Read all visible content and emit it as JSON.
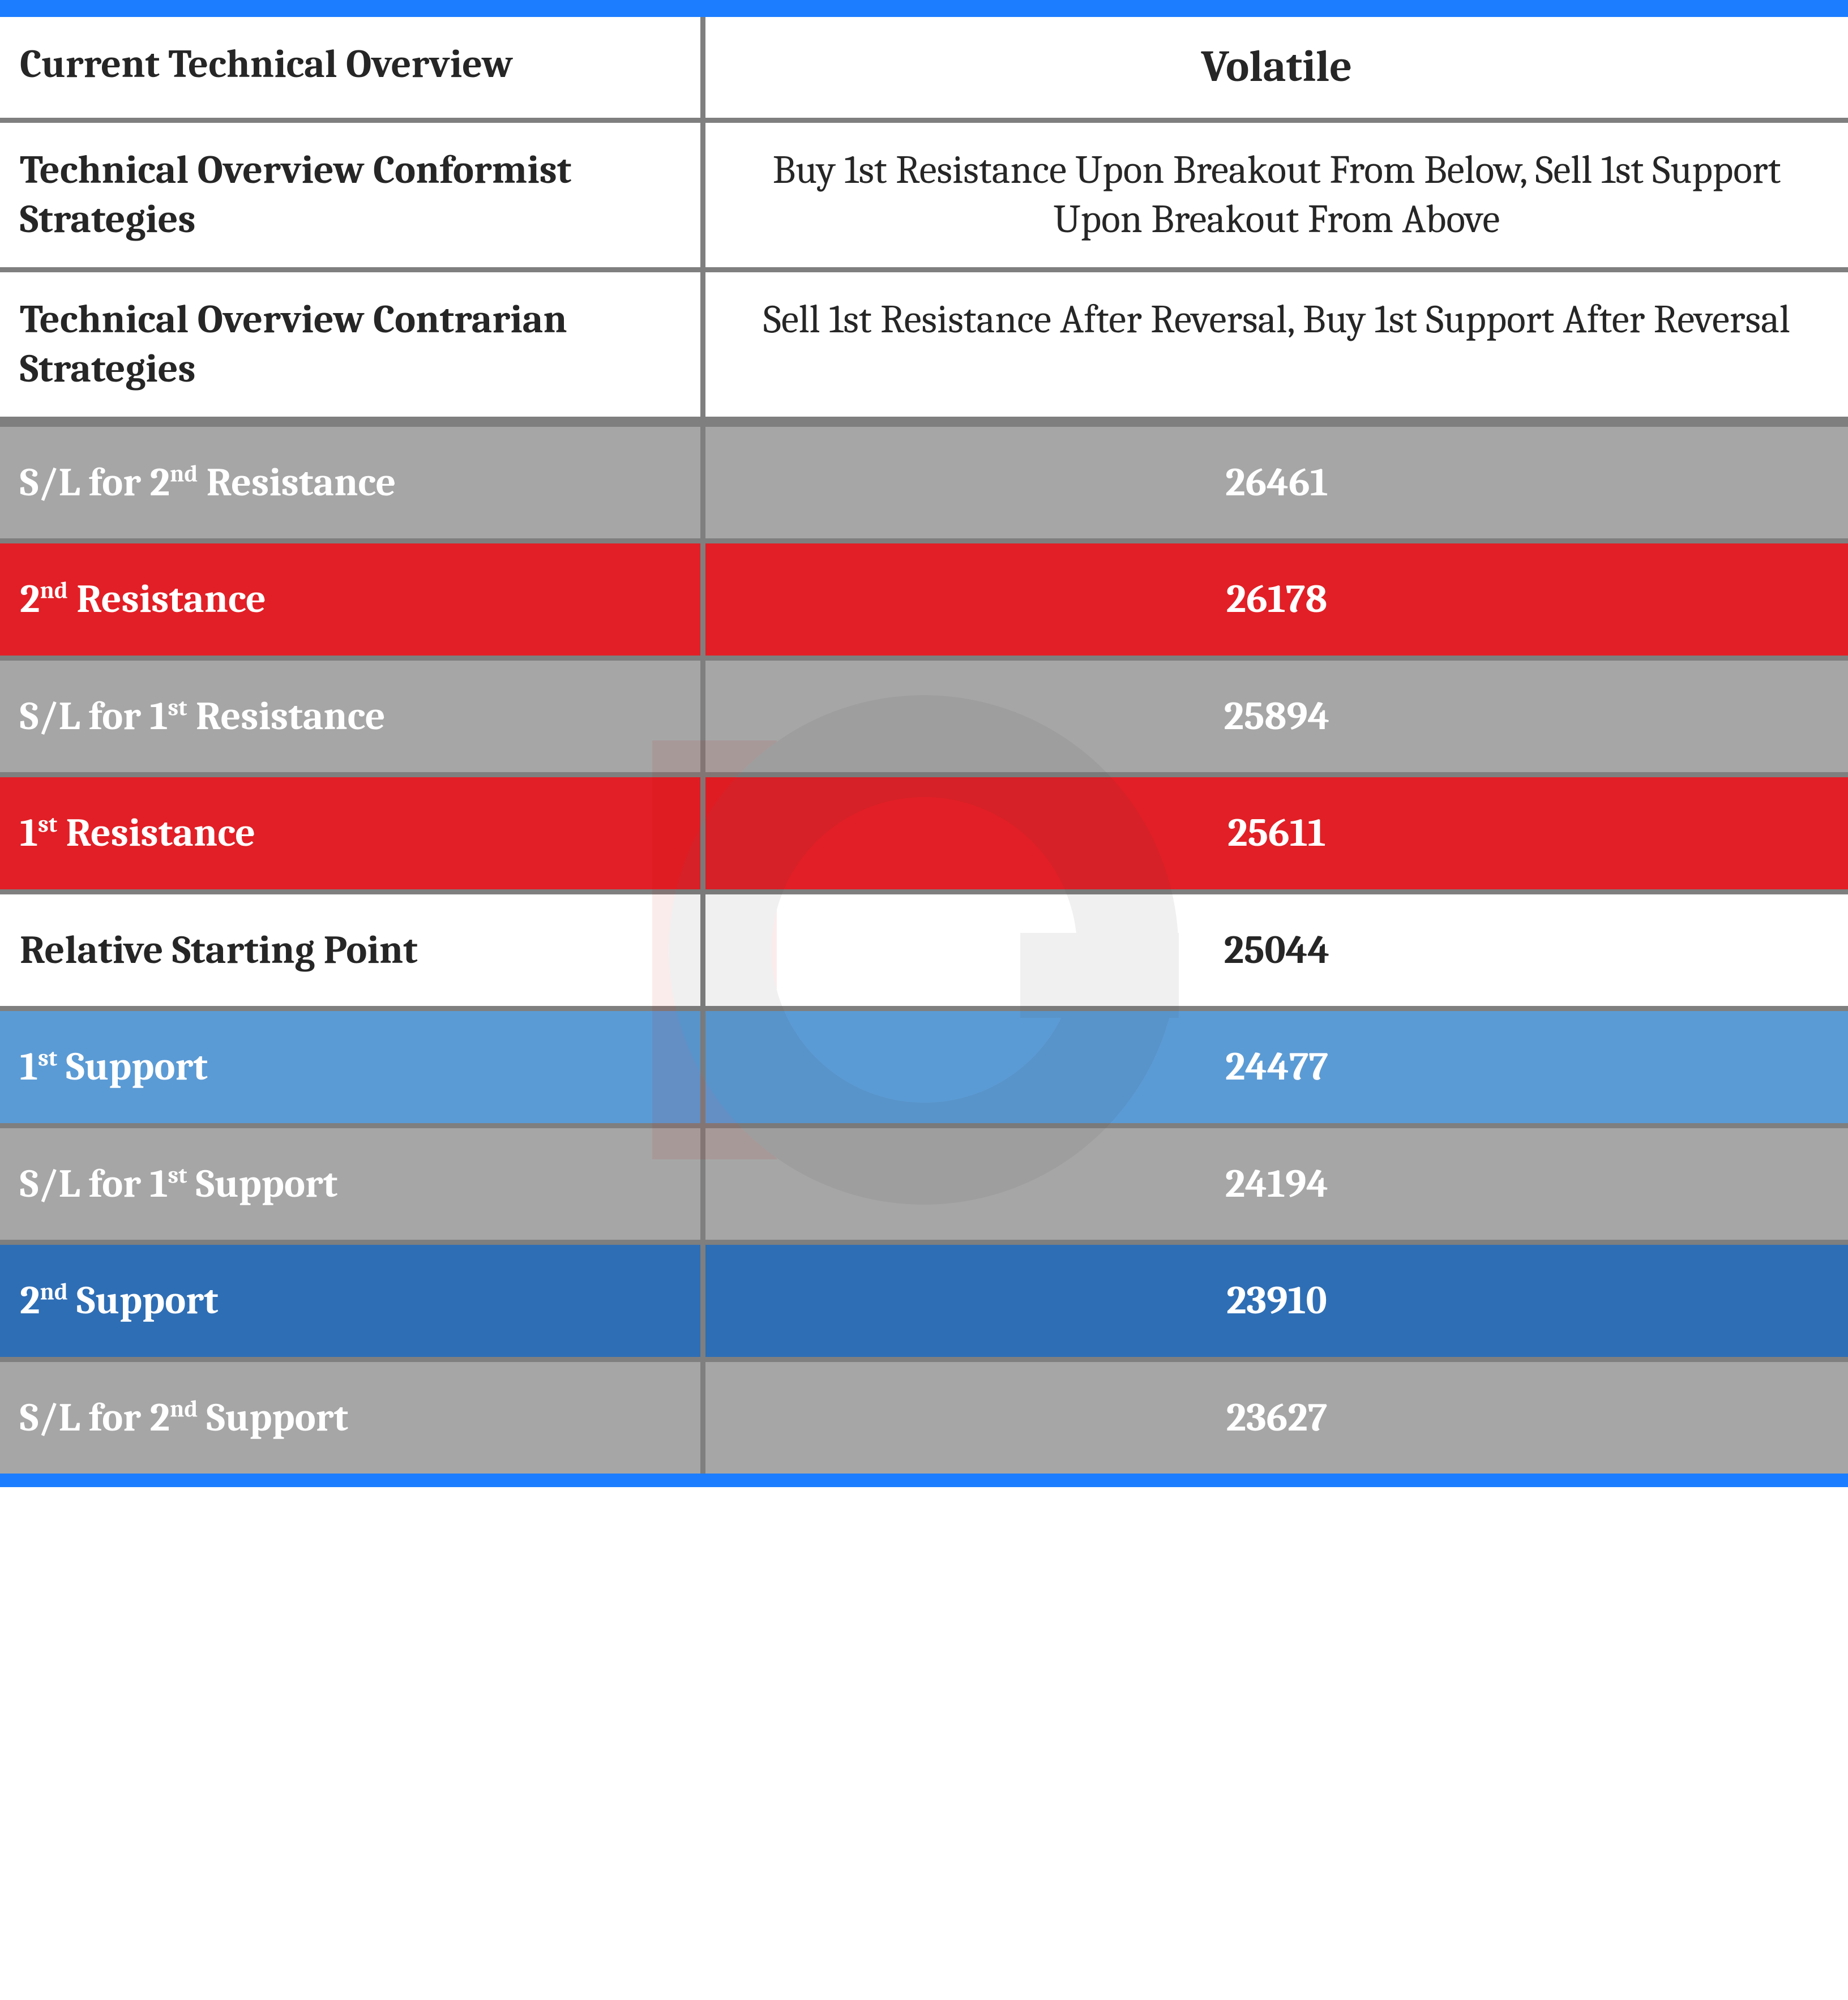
{
  "colors": {
    "top_bar": "#1c7dff",
    "divider": "#7f7f7f",
    "text_dark": "#262626",
    "text_light": "#ffffff",
    "row_gray": "#a6a6a6",
    "row_red": "#e21f26",
    "row_white": "#ffffff",
    "row_blue_light": "#5b9bd5",
    "row_blue_dark": "#2e6eb5",
    "watermark_red": "#cc0000",
    "watermark_gray": "#404040"
  },
  "header": {
    "left": "Current Technical Overview",
    "right": "Volatile"
  },
  "strategies": [
    {
      "left": "Technical Overview Conformist Strategies",
      "right": "Buy 1st Resistance Upon Breakout From Below, Sell 1st Support Upon Breakout From Above"
    },
    {
      "left": "Technical Overview Contrarian Strategies",
      "right": "Sell 1st Resistance After Reversal, Buy 1st Support After Reversal"
    }
  ],
  "levels": [
    {
      "label_prefix": "S/L for 2",
      "label_super": "nd",
      "label_suffix": " Resistance",
      "value": "26461",
      "bg": "row_gray",
      "fg": "text_light"
    },
    {
      "label_prefix": "2",
      "label_super": "nd",
      "label_suffix": " Resistance",
      "value": "26178",
      "bg": "row_red",
      "fg": "text_light"
    },
    {
      "label_prefix": "S/L for 1",
      "label_super": "st",
      "label_suffix": " Resistance",
      "value": "25894",
      "bg": "row_gray",
      "fg": "text_light"
    },
    {
      "label_prefix": "1",
      "label_super": "st",
      "label_suffix": " Resistance",
      "value": "25611",
      "bg": "row_red",
      "fg": "text_light"
    },
    {
      "label_prefix": "Relative Starting Point",
      "label_super": "",
      "label_suffix": "",
      "value": "25044",
      "bg": "row_white",
      "fg": "text_dark"
    },
    {
      "label_prefix": "1",
      "label_super": "st",
      "label_suffix": " Support",
      "value": "24477",
      "bg": "row_blue_light",
      "fg": "text_light"
    },
    {
      "label_prefix": "S/L for 1",
      "label_super": "st",
      "label_suffix": " Support",
      "value": "24194",
      "bg": "row_gray",
      "fg": "text_light"
    },
    {
      "label_prefix": "2",
      "label_super": "nd",
      "label_suffix": " Support",
      "value": "23910",
      "bg": "row_blue_dark",
      "fg": "text_light"
    },
    {
      "label_prefix": "S/L for 2",
      "label_super": "nd",
      "label_suffix": " Support",
      "value": "23627",
      "bg": "row_gray",
      "fg": "text_light"
    }
  ],
  "watermark_text": "IG"
}
